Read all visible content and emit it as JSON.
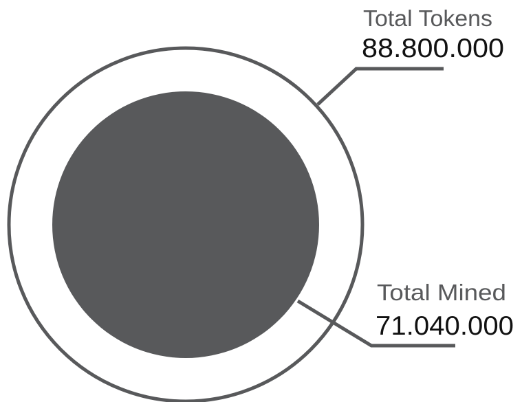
{
  "colors": {
    "outer_ring": "#58595b",
    "inner_disc": "#58595b",
    "leader_line": "#58595b",
    "title_text": "#58595b",
    "value_text": "#111111",
    "background": "#ffffff"
  },
  "total_tokens": {
    "title": "Total Tokens",
    "value": "88.800.000"
  },
  "total_mined": {
    "title": "Total Mined",
    "value": "71.040.000"
  },
  "chart_data": {
    "type": "nested-circles",
    "items": [
      {
        "label": "Total Tokens",
        "value": 88800000,
        "display": "88.800.000"
      },
      {
        "label": "Total Mined",
        "value": 71040000,
        "display": "71.040.000"
      }
    ]
  }
}
